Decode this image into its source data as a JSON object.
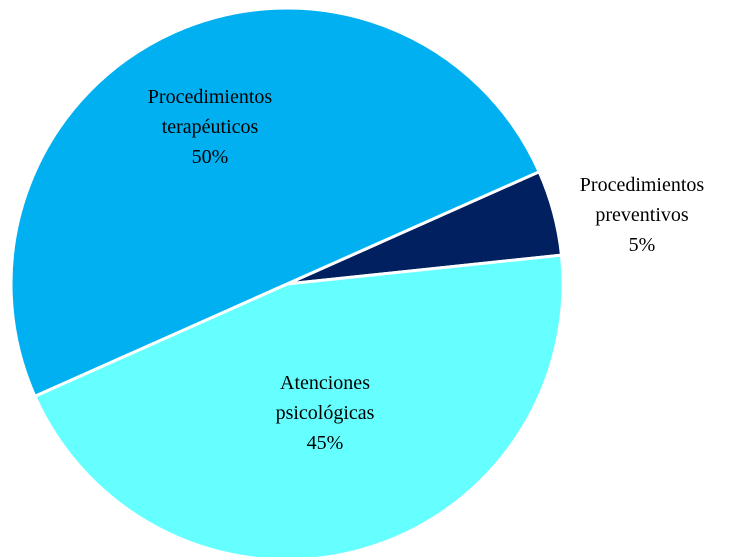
{
  "chart_data": {
    "type": "pie",
    "categories": [
      "Procedimientos preventivos",
      "Atenciones psicológicas",
      "Procedimientos terapéuticos"
    ],
    "values": [
      5,
      45,
      50
    ],
    "value_labels": [
      "5%",
      "45%",
      "50%"
    ],
    "colors": [
      "#002060",
      "#66FFFF",
      "#00B0F0"
    ]
  }
}
